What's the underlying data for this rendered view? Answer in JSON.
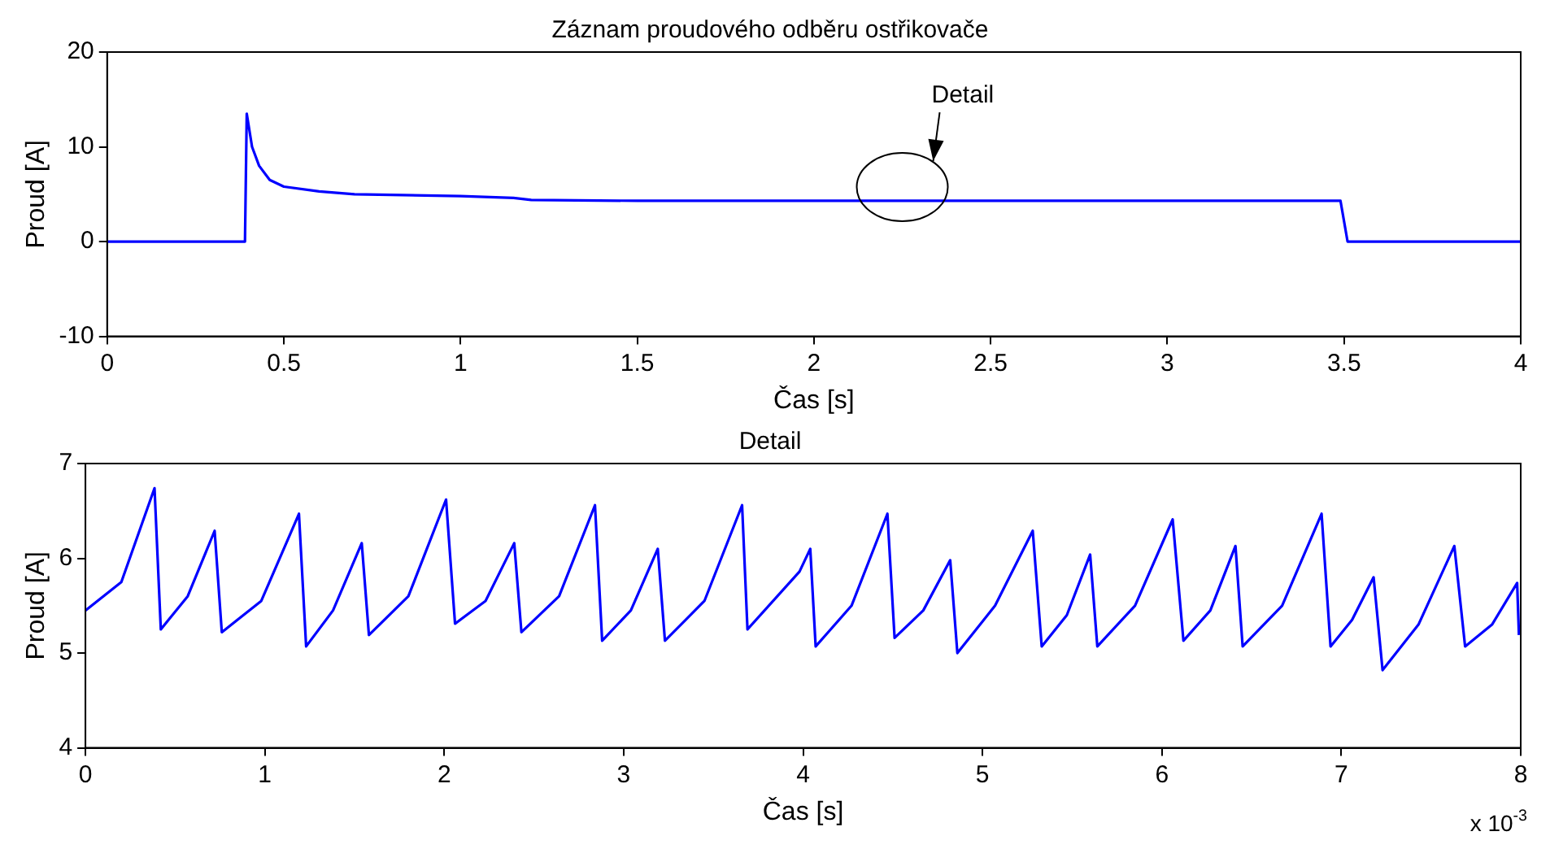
{
  "chart_data": [
    {
      "type": "line",
      "title": "Záznam proudového odběru ostřikovače",
      "xlabel": "Čas [s]",
      "ylabel": "Proud [A]",
      "xlim": [
        0,
        4
      ],
      "xticks": [
        0,
        0.5,
        1,
        1.5,
        2,
        2.5,
        3,
        3.5,
        4
      ],
      "ylim": [
        -10,
        20
      ],
      "yticks": [
        -10,
        0,
        10,
        20
      ],
      "grid": false,
      "legend": false,
      "marker": "none",
      "line_style": "solid",
      "annotations": [
        "Detail"
      ],
      "series": [
        {
          "color": "#0000ff",
          "x": [
            0,
            0.39,
            0.395,
            0.41,
            0.43,
            0.46,
            0.5,
            0.6,
            0.7,
            1,
            1.15,
            1.2,
            1.5,
            2,
            2.5,
            3,
            3.49,
            3.51,
            4
          ],
          "values": [
            0,
            0,
            13.5,
            10,
            8,
            6.5,
            5.8,
            5.3,
            5,
            4.8,
            4.6,
            4.4,
            4.3,
            4.3,
            4.3,
            4.3,
            4.3,
            0,
            0
          ]
        }
      ]
    },
    {
      "type": "line",
      "title": "Detail",
      "xlabel": "Čas [s]",
      "ylabel": "Proud [A]",
      "xlim": [
        0,
        8
      ],
      "xticks": [
        0,
        1,
        2,
        3,
        4,
        5,
        6,
        7,
        8
      ],
      "ylim": [
        4,
        7
      ],
      "yticks": [
        4,
        5,
        6,
        7
      ],
      "grid": false,
      "legend": false,
      "marker": "none",
      "line_style": "solid",
      "annotations": [
        "x 10$^{-3}$"
      ],
      "series": [
        {
          "color": "#0000ff",
          "x": [
            0,
            0.2,
            0.385,
            0.42,
            0.57,
            0.72,
            0.76,
            0.98,
            1.19,
            1.23,
            1.38,
            1.54,
            1.58,
            1.8,
            2.01,
            2.06,
            2.23,
            2.39,
            2.43,
            2.64,
            2.84,
            2.88,
            3.04,
            3.19,
            3.23,
            3.45,
            3.66,
            3.69,
            3.98,
            4.04,
            4.07,
            4.27,
            4.47,
            4.51,
            4.67,
            4.82,
            4.86,
            5.07,
            5.28,
            5.33,
            5.47,
            5.6,
            5.64,
            5.85,
            6.06,
            6.12,
            6.27,
            6.41,
            6.45,
            6.67,
            6.89,
            6.94,
            7.06,
            7.18,
            7.23,
            7.43,
            7.63,
            7.69,
            7.84,
            7.98,
            7.99
          ],
          "values": [
            5.45,
            5.75,
            6.74,
            5.25,
            5.6,
            6.29,
            5.22,
            5.55,
            6.47,
            5.07,
            5.45,
            6.16,
            5.19,
            5.6,
            6.62,
            5.31,
            5.55,
            6.16,
            5.22,
            5.6,
            6.56,
            5.13,
            5.45,
            6.1,
            5.13,
            5.55,
            6.56,
            5.25,
            5.86,
            6.1,
            5.07,
            5.5,
            6.47,
            5.16,
            5.45,
            5.98,
            5.0,
            5.5,
            6.29,
            5.07,
            5.4,
            6.04,
            5.07,
            5.5,
            6.41,
            5.13,
            5.45,
            6.13,
            5.07,
            5.5,
            6.47,
            5.07,
            5.35,
            5.8,
            4.82,
            5.3,
            6.13,
            5.07,
            5.3,
            5.74,
            5.19
          ]
        }
      ]
    }
  ]
}
